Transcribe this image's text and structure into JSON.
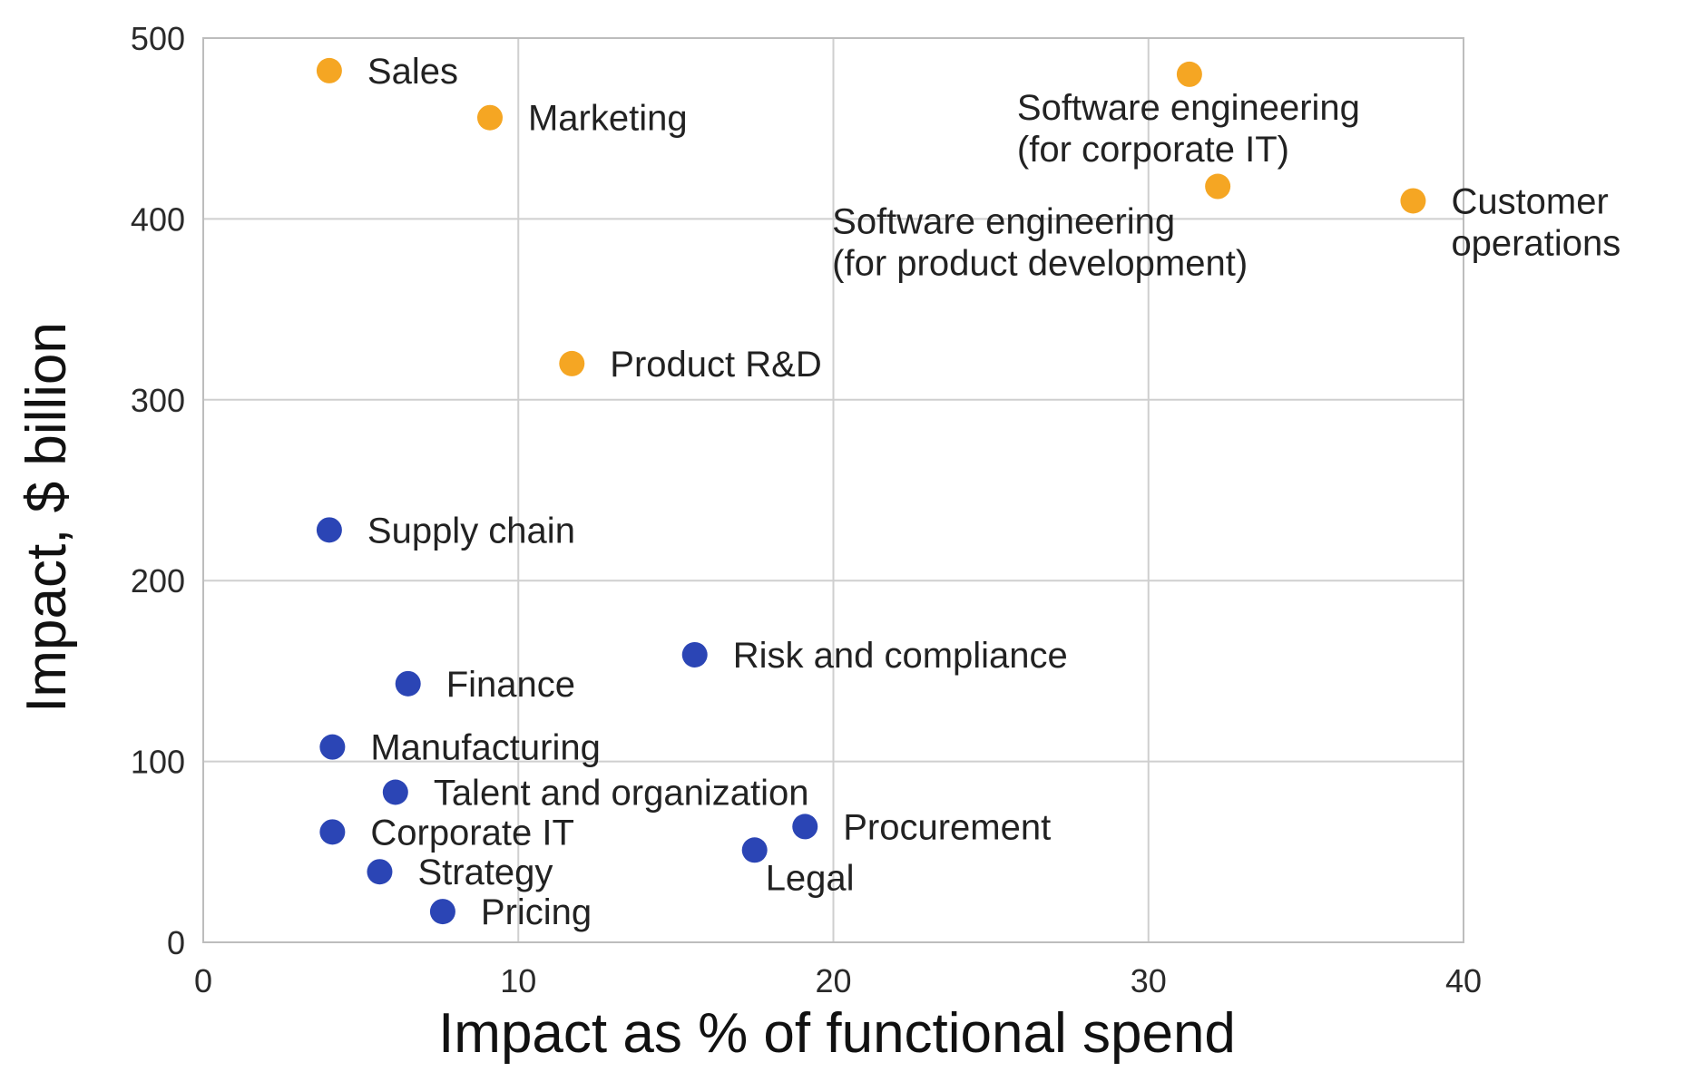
{
  "chart_data": {
    "type": "scatter",
    "xlabel": "Impact as % of functional spend",
    "ylabel": "Impact, $ billion",
    "xlim": [
      0,
      40
    ],
    "ylim": [
      0,
      500
    ],
    "xticks": [
      0,
      10,
      20,
      30,
      40
    ],
    "yticks": [
      0,
      100,
      200,
      300,
      400,
      500
    ],
    "grid": true,
    "colors": {
      "high": "#F5A623",
      "low": "#2B45B5"
    },
    "points": [
      {
        "label": "Sales",
        "x": 4.0,
        "y": 482,
        "group": "high"
      },
      {
        "label": "Marketing",
        "x": 9.1,
        "y": 456,
        "group": "high"
      },
      {
        "label": "Software engineering\n(for corporate IT)",
        "x": 31.3,
        "y": 480,
        "group": "high"
      },
      {
        "label": "Software engineering\n(for product development)",
        "x": 32.2,
        "y": 418,
        "group": "high"
      },
      {
        "label": "Customer\noperations",
        "x": 38.4,
        "y": 410,
        "group": "high"
      },
      {
        "label": "Product R&D",
        "x": 11.7,
        "y": 320,
        "group": "high"
      },
      {
        "label": "Supply chain",
        "x": 4.0,
        "y": 228,
        "group": "low"
      },
      {
        "label": "Risk and compliance",
        "x": 15.6,
        "y": 159,
        "group": "low"
      },
      {
        "label": "Finance",
        "x": 6.5,
        "y": 143,
        "group": "low"
      },
      {
        "label": "Manufacturing",
        "x": 4.1,
        "y": 108,
        "group": "low"
      },
      {
        "label": "Talent and organization",
        "x": 6.1,
        "y": 83,
        "group": "low"
      },
      {
        "label": "Corporate IT",
        "x": 4.1,
        "y": 61,
        "group": "low"
      },
      {
        "label": "Procurement",
        "x": 19.1,
        "y": 64,
        "group": "low"
      },
      {
        "label": "Legal",
        "x": 17.5,
        "y": 51,
        "group": "low"
      },
      {
        "label": "Strategy",
        "x": 5.6,
        "y": 39,
        "group": "low"
      },
      {
        "label": "Pricing",
        "x": 7.6,
        "y": 17,
        "group": "low"
      }
    ]
  }
}
